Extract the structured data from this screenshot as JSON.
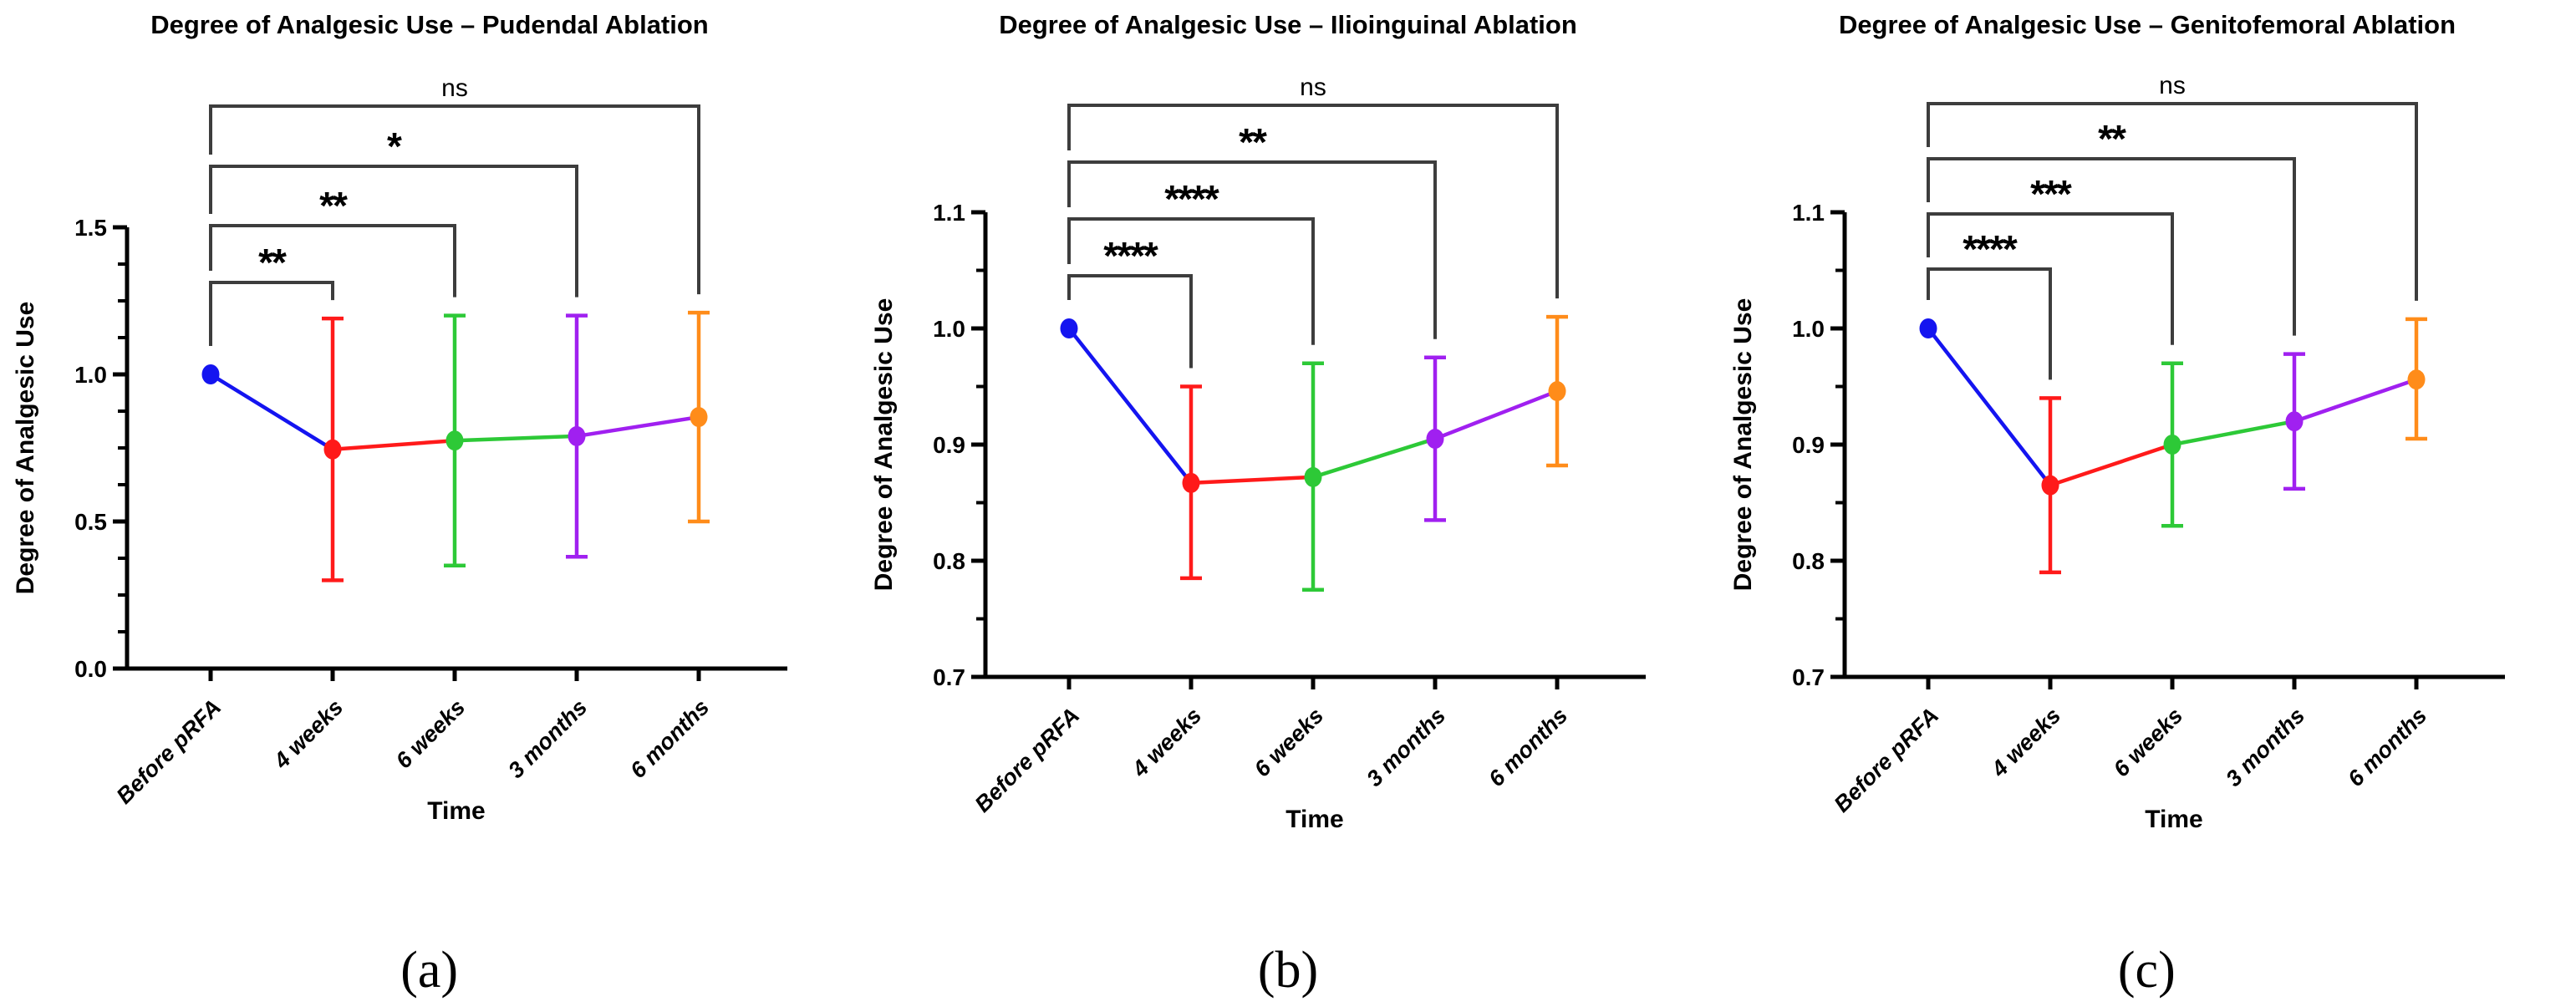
{
  "figure": {
    "background": "#ffffff",
    "axis_color": "#000000",
    "bracket_color": "#3d3d3d"
  },
  "chart_data": [
    {
      "type": "line",
      "panel_id": "a",
      "caption": "(a)",
      "title": "Degree of Analgesic Use – Pudendal Ablation",
      "xlabel": "Time",
      "ylabel": "Degree of Analgesic Use",
      "categories": [
        "Before pRFA",
        "4 weeks",
        "6 weeks",
        "3 months",
        "6 months"
      ],
      "ylim": [
        0.0,
        1.5
      ],
      "yticks": [
        0.0,
        0.5,
        1.0,
        1.5
      ],
      "ytick_labels": [
        "0.0",
        "0.5",
        "1.0",
        "1.5"
      ],
      "minor_tick_step": 0.125,
      "grid": false,
      "legend": "none",
      "point_colors": [
        "#1414f0",
        "#ff1a1a",
        "#2dc937",
        "#a020f0",
        "#ff8c1a"
      ],
      "series": [
        {
          "name": "Degree of Analgesic Use",
          "values": [
            1.0,
            0.745,
            0.775,
            0.79,
            0.855
          ],
          "err_low": [
            null,
            0.3,
            0.35,
            0.38,
            0.5
          ],
          "err_high": [
            null,
            1.19,
            1.2,
            1.2,
            1.21
          ]
        }
      ],
      "comparisons": [
        {
          "from": "Before pRFA",
          "to": "4 weeks",
          "label": "**"
        },
        {
          "from": "Before pRFA",
          "to": "6 weeks",
          "label": "**"
        },
        {
          "from": "Before pRFA",
          "to": "3 months",
          "label": "*"
        },
        {
          "from": "Before pRFA",
          "to": "6 months",
          "label": "ns"
        }
      ]
    },
    {
      "type": "line",
      "panel_id": "b",
      "caption": "(b)",
      "title": "Degree of Analgesic Use – Ilioinguinal Ablation",
      "xlabel": "Time",
      "ylabel": "Degree of Analgesic Use",
      "categories": [
        "Before pRFA",
        "4 weeks",
        "6 weeks",
        "3 months",
        "6 months"
      ],
      "ylim": [
        0.7,
        1.1
      ],
      "yticks": [
        0.7,
        0.8,
        0.9,
        1.0,
        1.1
      ],
      "ytick_labels": [
        "0.7",
        "0.8",
        "0.9",
        "1.0",
        "1.1"
      ],
      "minor_tick_step": 0.05,
      "grid": false,
      "legend": "none",
      "point_colors": [
        "#1414f0",
        "#ff1a1a",
        "#2dc937",
        "#a020f0",
        "#ff8c1a"
      ],
      "series": [
        {
          "name": "Degree of Analgesic Use",
          "values": [
            1.0,
            0.867,
            0.872,
            0.905,
            0.946
          ],
          "err_low": [
            null,
            0.785,
            0.775,
            0.835,
            0.882
          ],
          "err_high": [
            null,
            0.95,
            0.97,
            0.975,
            1.01
          ]
        }
      ],
      "comparisons": [
        {
          "from": "Before pRFA",
          "to": "4 weeks",
          "label": "****"
        },
        {
          "from": "Before pRFA",
          "to": "6 weeks",
          "label": "****"
        },
        {
          "from": "Before pRFA",
          "to": "3 months",
          "label": "**"
        },
        {
          "from": "Before pRFA",
          "to": "6 months",
          "label": "ns"
        }
      ]
    },
    {
      "type": "line",
      "panel_id": "c",
      "caption": "(c)",
      "title": "Degree of Analgesic Use – Genitofemoral Ablation",
      "xlabel": "Time",
      "ylabel": "Degree of Analgesic Use",
      "categories": [
        "Before pRFA",
        "4 weeks",
        "6 weeks",
        "3 months",
        "6 months"
      ],
      "ylim": [
        0.7,
        1.1
      ],
      "yticks": [
        0.7,
        0.8,
        0.9,
        1.0,
        1.1
      ],
      "ytick_labels": [
        "0.7",
        "0.8",
        "0.9",
        "1.0",
        "1.1"
      ],
      "minor_tick_step": 0.05,
      "grid": false,
      "legend": "none",
      "point_colors": [
        "#1414f0",
        "#ff1a1a",
        "#2dc937",
        "#a020f0",
        "#ff8c1a"
      ],
      "series": [
        {
          "name": "Degree of Analgesic Use",
          "values": [
            1.0,
            0.865,
            0.9,
            0.92,
            0.956
          ],
          "err_low": [
            null,
            0.79,
            0.83,
            0.862,
            0.905
          ],
          "err_high": [
            null,
            0.94,
            0.97,
            0.978,
            1.008
          ]
        }
      ],
      "comparisons": [
        {
          "from": "Before pRFA",
          "to": "4 weeks",
          "label": "****"
        },
        {
          "from": "Before pRFA",
          "to": "6 weeks",
          "label": "***"
        },
        {
          "from": "Before pRFA",
          "to": "3 months",
          "label": "**"
        },
        {
          "from": "Before pRFA",
          "to": "6 months",
          "label": "ns"
        }
      ]
    }
  ]
}
